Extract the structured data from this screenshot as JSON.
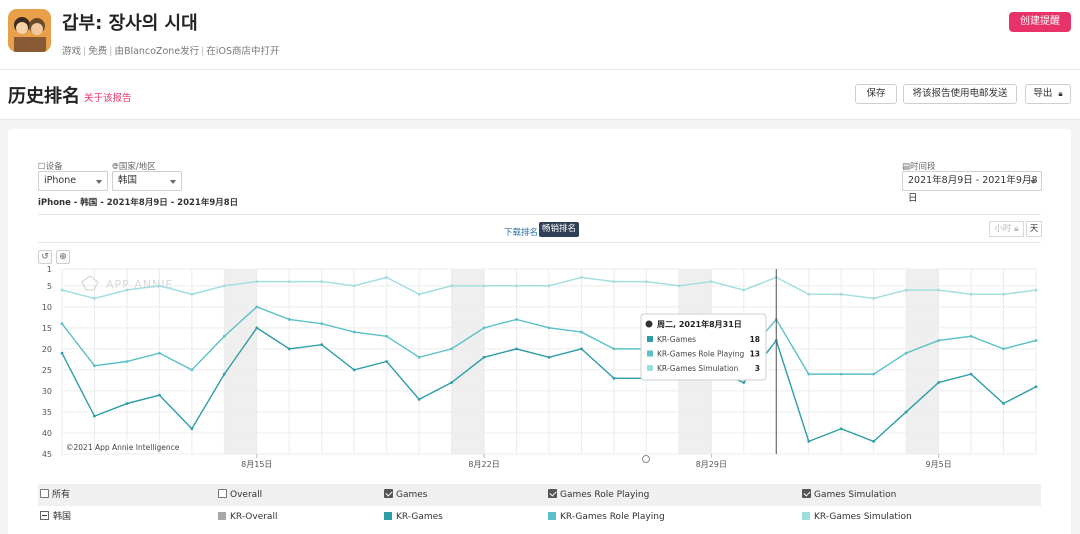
{
  "app": {
    "title": "갑부: 장사의 시대",
    "meta": [
      "游戏",
      "免费",
      "由BlancoZone发行",
      "在iOS商店中打开"
    ],
    "create_alert": "创建提醒"
  },
  "page": {
    "title": "历史排名",
    "about_link": "关于该报告",
    "save": "保存",
    "email": "将该报告使用电邮发送",
    "export": "导出"
  },
  "filters": {
    "device_label": "设备",
    "device_value": "iPhone",
    "country_label": "国家/地区",
    "country_value": "韩国",
    "period_label": "时间段",
    "period_value": "2021年8月9日 - 2021年9月8日",
    "summary": "iPhone - 韩国 - 2021年8月9日 - 2021年9月8日"
  },
  "tabs": {
    "downloads": "下载排名",
    "revenue": "畅销排名"
  },
  "granularity": {
    "hour": "小时",
    "day": "天"
  },
  "watermark": "APP ANNIE",
  "copyright": "©2021 App Annie Intelligence",
  "colors": {
    "kr_games": "#2e9da8",
    "kr_games_rp": "#5cc0c8",
    "kr_games_sim": "#9edde0",
    "overall": "#a8a8a8",
    "accent": "#e8336a",
    "weekend": "#efefef"
  },
  "chart_data": {
    "type": "line",
    "y_reversed": true,
    "ylim": [
      1,
      45
    ],
    "y_ticks": [
      1,
      5,
      10,
      15,
      20,
      25,
      30,
      35,
      40,
      45
    ],
    "x_dates": [
      "8月9日",
      "8月10日",
      "8月11日",
      "8月12日",
      "8月13日",
      "8月14日",
      "8月15日",
      "8月16日",
      "8月17日",
      "8月18日",
      "8月19日",
      "8月20日",
      "8月21日",
      "8月22日",
      "8月23日",
      "8月24日",
      "8月25日",
      "8月26日",
      "8月27日",
      "8月28日",
      "8月29日",
      "8月30日",
      "8月31日",
      "9月1日",
      "9月2日",
      "9月3日",
      "9月4日",
      "9月5日",
      "9月6日",
      "9月7日",
      "9月8日"
    ],
    "x_tick_labels": [
      {
        "date": "8月15日",
        "label": "8月15日"
      },
      {
        "date": "8月22日",
        "label": "8月22日"
      },
      {
        "date": "8月29日",
        "label": "8月29日"
      },
      {
        "date": "9月5日",
        "label": "9月5日"
      }
    ],
    "weekend_bands": [
      [
        "8月14日",
        "8月15日"
      ],
      [
        "8月21日",
        "8月22日"
      ],
      [
        "8月28日",
        "8月29日"
      ],
      [
        "9月4日",
        "9月5日"
      ]
    ],
    "series": [
      {
        "name": "KR-Games Simulation",
        "color_key": "kr_games_sim",
        "values": [
          6,
          8,
          6,
          5,
          7,
          5,
          4,
          4,
          4,
          5,
          3,
          7,
          5,
          5,
          5,
          5,
          3,
          4,
          4,
          5,
          4,
          6,
          3,
          7,
          7,
          8,
          6,
          6,
          7,
          7,
          6
        ]
      },
      {
        "name": "KR-Games Role Playing",
        "color_key": "kr_games_rp",
        "values": [
          14,
          24,
          23,
          21,
          25,
          17,
          10,
          13,
          14,
          16,
          17,
          22,
          20,
          15,
          13,
          15,
          16,
          20,
          20,
          21,
          19,
          22,
          13,
          26,
          26,
          26,
          21,
          18,
          17,
          20,
          18
        ]
      },
      {
        "name": "KR-Games",
        "color_key": "kr_games",
        "values": [
          21,
          36,
          33,
          31,
          39,
          26,
          15,
          20,
          19,
          25,
          23,
          32,
          28,
          22,
          20,
          22,
          20,
          27,
          27,
          27,
          25,
          28,
          18,
          42,
          39,
          42,
          35,
          28,
          26,
          33,
          29
        ]
      }
    ],
    "cursor_date": "8月31日"
  },
  "tooltip": {
    "date": "周二, 2021年8月31日",
    "rows": [
      {
        "label": "KR-Games",
        "value": "18",
        "color_key": "kr_games"
      },
      {
        "label": "KR-Games Role Playing",
        "value": "13",
        "color_key": "kr_games_rp"
      },
      {
        "label": "KR-Games Simulation",
        "value": "3",
        "color_key": "kr_games_sim"
      }
    ]
  },
  "legend": {
    "all": "所有",
    "country": "韩国",
    "columns": [
      {
        "header": "Overall",
        "item": "KR-Overall",
        "checked": false,
        "color_key": "overall"
      },
      {
        "header": "Games",
        "item": "KR-Games",
        "checked": true,
        "color_key": "kr_games"
      },
      {
        "header": "Games Role Playing",
        "item": "KR-Games Role Playing",
        "checked": true,
        "color_key": "kr_games_rp"
      },
      {
        "header": "Games Simulation",
        "item": "KR-Games Simulation",
        "checked": true,
        "color_key": "kr_games_sim"
      }
    ]
  }
}
